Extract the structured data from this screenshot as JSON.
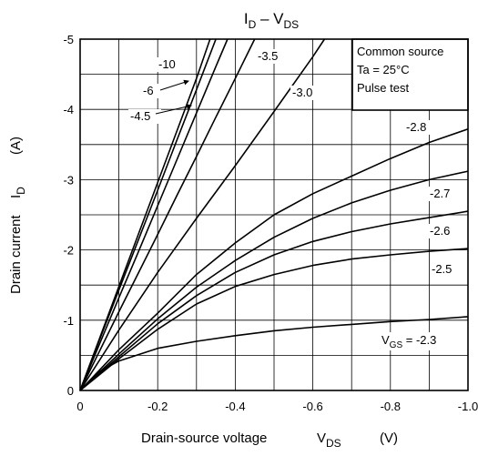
{
  "chart_data": {
    "type": "line",
    "title": {
      "base": "I",
      "sub1": "D",
      "mid": " – V",
      "sub2": "DS"
    },
    "xlabel": {
      "text": "Drain-source voltage",
      "symbol": "V",
      "sub": "DS",
      "unit": "(V)"
    },
    "ylabel": {
      "text": "Drain current",
      "symbol": "I",
      "sub": "D",
      "unit": "(A)"
    },
    "xlim": [
      0,
      -1.0
    ],
    "ylim": [
      0,
      -5
    ],
    "xticks": [
      {
        "value": 0,
        "label": "0"
      },
      {
        "value": -0.2,
        "label": "-0.2"
      },
      {
        "value": -0.4,
        "label": "-0.4"
      },
      {
        "value": -0.6,
        "label": "-0.6"
      },
      {
        "value": -0.8,
        "label": "-0.8"
      },
      {
        "value": -1.0,
        "label": "-1.0"
      }
    ],
    "yticks": [
      {
        "value": 0,
        "label": "0"
      },
      {
        "value": -1,
        "label": "-1"
      },
      {
        "value": -2,
        "label": "-2"
      },
      {
        "value": -3,
        "label": "-3"
      },
      {
        "value": -4,
        "label": "-4"
      },
      {
        "value": -5,
        "label": "-5"
      }
    ],
    "grid": true,
    "conditions": [
      "Common source",
      "Ta = 25°C",
      "Pulse test"
    ],
    "series": [
      {
        "name": "-10",
        "x": [
          0,
          -0.05,
          -0.1,
          -0.15,
          -0.2,
          -0.25,
          -0.3,
          -0.35
        ],
        "y": [
          0,
          -0.72,
          -1.43,
          -2.14,
          -2.85,
          -3.57,
          -4.28,
          -5.0
        ]
      },
      {
        "name": "-6",
        "x": [
          0,
          -0.05,
          -0.1,
          -0.15,
          -0.2,
          -0.25,
          -0.3,
          -0.335
        ],
        "y": [
          0,
          -0.74,
          -1.48,
          -2.22,
          -2.96,
          -3.7,
          -4.44,
          -5.0
        ]
      },
      {
        "name": "-4.5",
        "x": [
          0,
          -0.05,
          -0.1,
          -0.15,
          -0.2,
          -0.25,
          -0.3,
          -0.35,
          -0.38
        ],
        "y": [
          0,
          -0.66,
          -1.32,
          -1.97,
          -2.63,
          -3.29,
          -3.95,
          -4.61,
          -5.0
        ]
      },
      {
        "name": "-3.5",
        "x": [
          0,
          -0.05,
          -0.1,
          -0.15,
          -0.2,
          -0.25,
          -0.3,
          -0.35,
          -0.4,
          -0.45
        ],
        "y": [
          0,
          -0.56,
          -1.12,
          -1.67,
          -2.22,
          -2.78,
          -3.33,
          -3.89,
          -4.44,
          -5.0
        ]
      },
      {
        "name": "-3.0",
        "x": [
          0,
          -0.1,
          -0.2,
          -0.3,
          -0.4,
          -0.5,
          -0.6,
          -0.63
        ],
        "y": [
          0,
          -0.86,
          -1.68,
          -2.45,
          -3.2,
          -3.97,
          -4.75,
          -5.0
        ]
      },
      {
        "name": "-2.8",
        "x": [
          0,
          -0.1,
          -0.2,
          -0.3,
          -0.4,
          -0.5,
          -0.6,
          -0.7,
          -0.8,
          -0.9,
          -1.0
        ],
        "y": [
          0,
          -0.58,
          -1.1,
          -1.65,
          -2.1,
          -2.5,
          -2.8,
          -3.05,
          -3.3,
          -3.53,
          -3.72
        ]
      },
      {
        "name": "-2.7",
        "x": [
          0,
          -0.1,
          -0.2,
          -0.3,
          -0.4,
          -0.5,
          -0.6,
          -0.7,
          -0.8,
          -0.9,
          -1.0
        ],
        "y": [
          0,
          -0.52,
          -1.02,
          -1.47,
          -1.85,
          -2.18,
          -2.45,
          -2.67,
          -2.85,
          -3.0,
          -3.12
        ]
      },
      {
        "name": "-2.6",
        "x": [
          0,
          -0.1,
          -0.2,
          -0.3,
          -0.4,
          -0.5,
          -0.6,
          -0.7,
          -0.8,
          -0.9,
          -1.0
        ],
        "y": [
          0,
          -0.48,
          -0.95,
          -1.35,
          -1.68,
          -1.93,
          -2.12,
          -2.26,
          -2.37,
          -2.46,
          -2.55
        ]
      },
      {
        "name": "-2.5",
        "x": [
          0,
          -0.1,
          -0.2,
          -0.3,
          -0.4,
          -0.5,
          -0.6,
          -0.7,
          -0.8,
          -0.9,
          -1.0
        ],
        "y": [
          0,
          -0.45,
          -0.87,
          -1.23,
          -1.48,
          -1.65,
          -1.78,
          -1.87,
          -1.93,
          -1.98,
          -2.02
        ]
      },
      {
        "name": "-2.3",
        "x": [
          0,
          -0.05,
          -0.1,
          -0.2,
          -0.3,
          -0.4,
          -0.5,
          -0.6,
          -0.7,
          -0.8,
          -0.9,
          -1.0
        ],
        "y": [
          0,
          -0.27,
          -0.42,
          -0.6,
          -0.7,
          -0.78,
          -0.85,
          -0.9,
          -0.94,
          -0.98,
          -1.01,
          -1.05
        ]
      }
    ],
    "curve_labels": [
      {
        "series": "-10",
        "text": "-10"
      },
      {
        "series": "-6",
        "text": "-6"
      },
      {
        "series": "-4.5",
        "text": "-4.5"
      },
      {
        "series": "-3.5",
        "text": "-3.5"
      },
      {
        "series": "-3.0",
        "text": "-3.0"
      },
      {
        "series": "-2.8",
        "text": "-2.8"
      },
      {
        "series": "-2.7",
        "text": "-2.7"
      },
      {
        "series": "-2.6",
        "text": "-2.6"
      },
      {
        "series": "-2.5",
        "text": "-2.5"
      },
      {
        "series": "-2.3",
        "prefix": "V",
        "prefix_sub": "GS",
        "text": " = -2.3"
      }
    ]
  }
}
